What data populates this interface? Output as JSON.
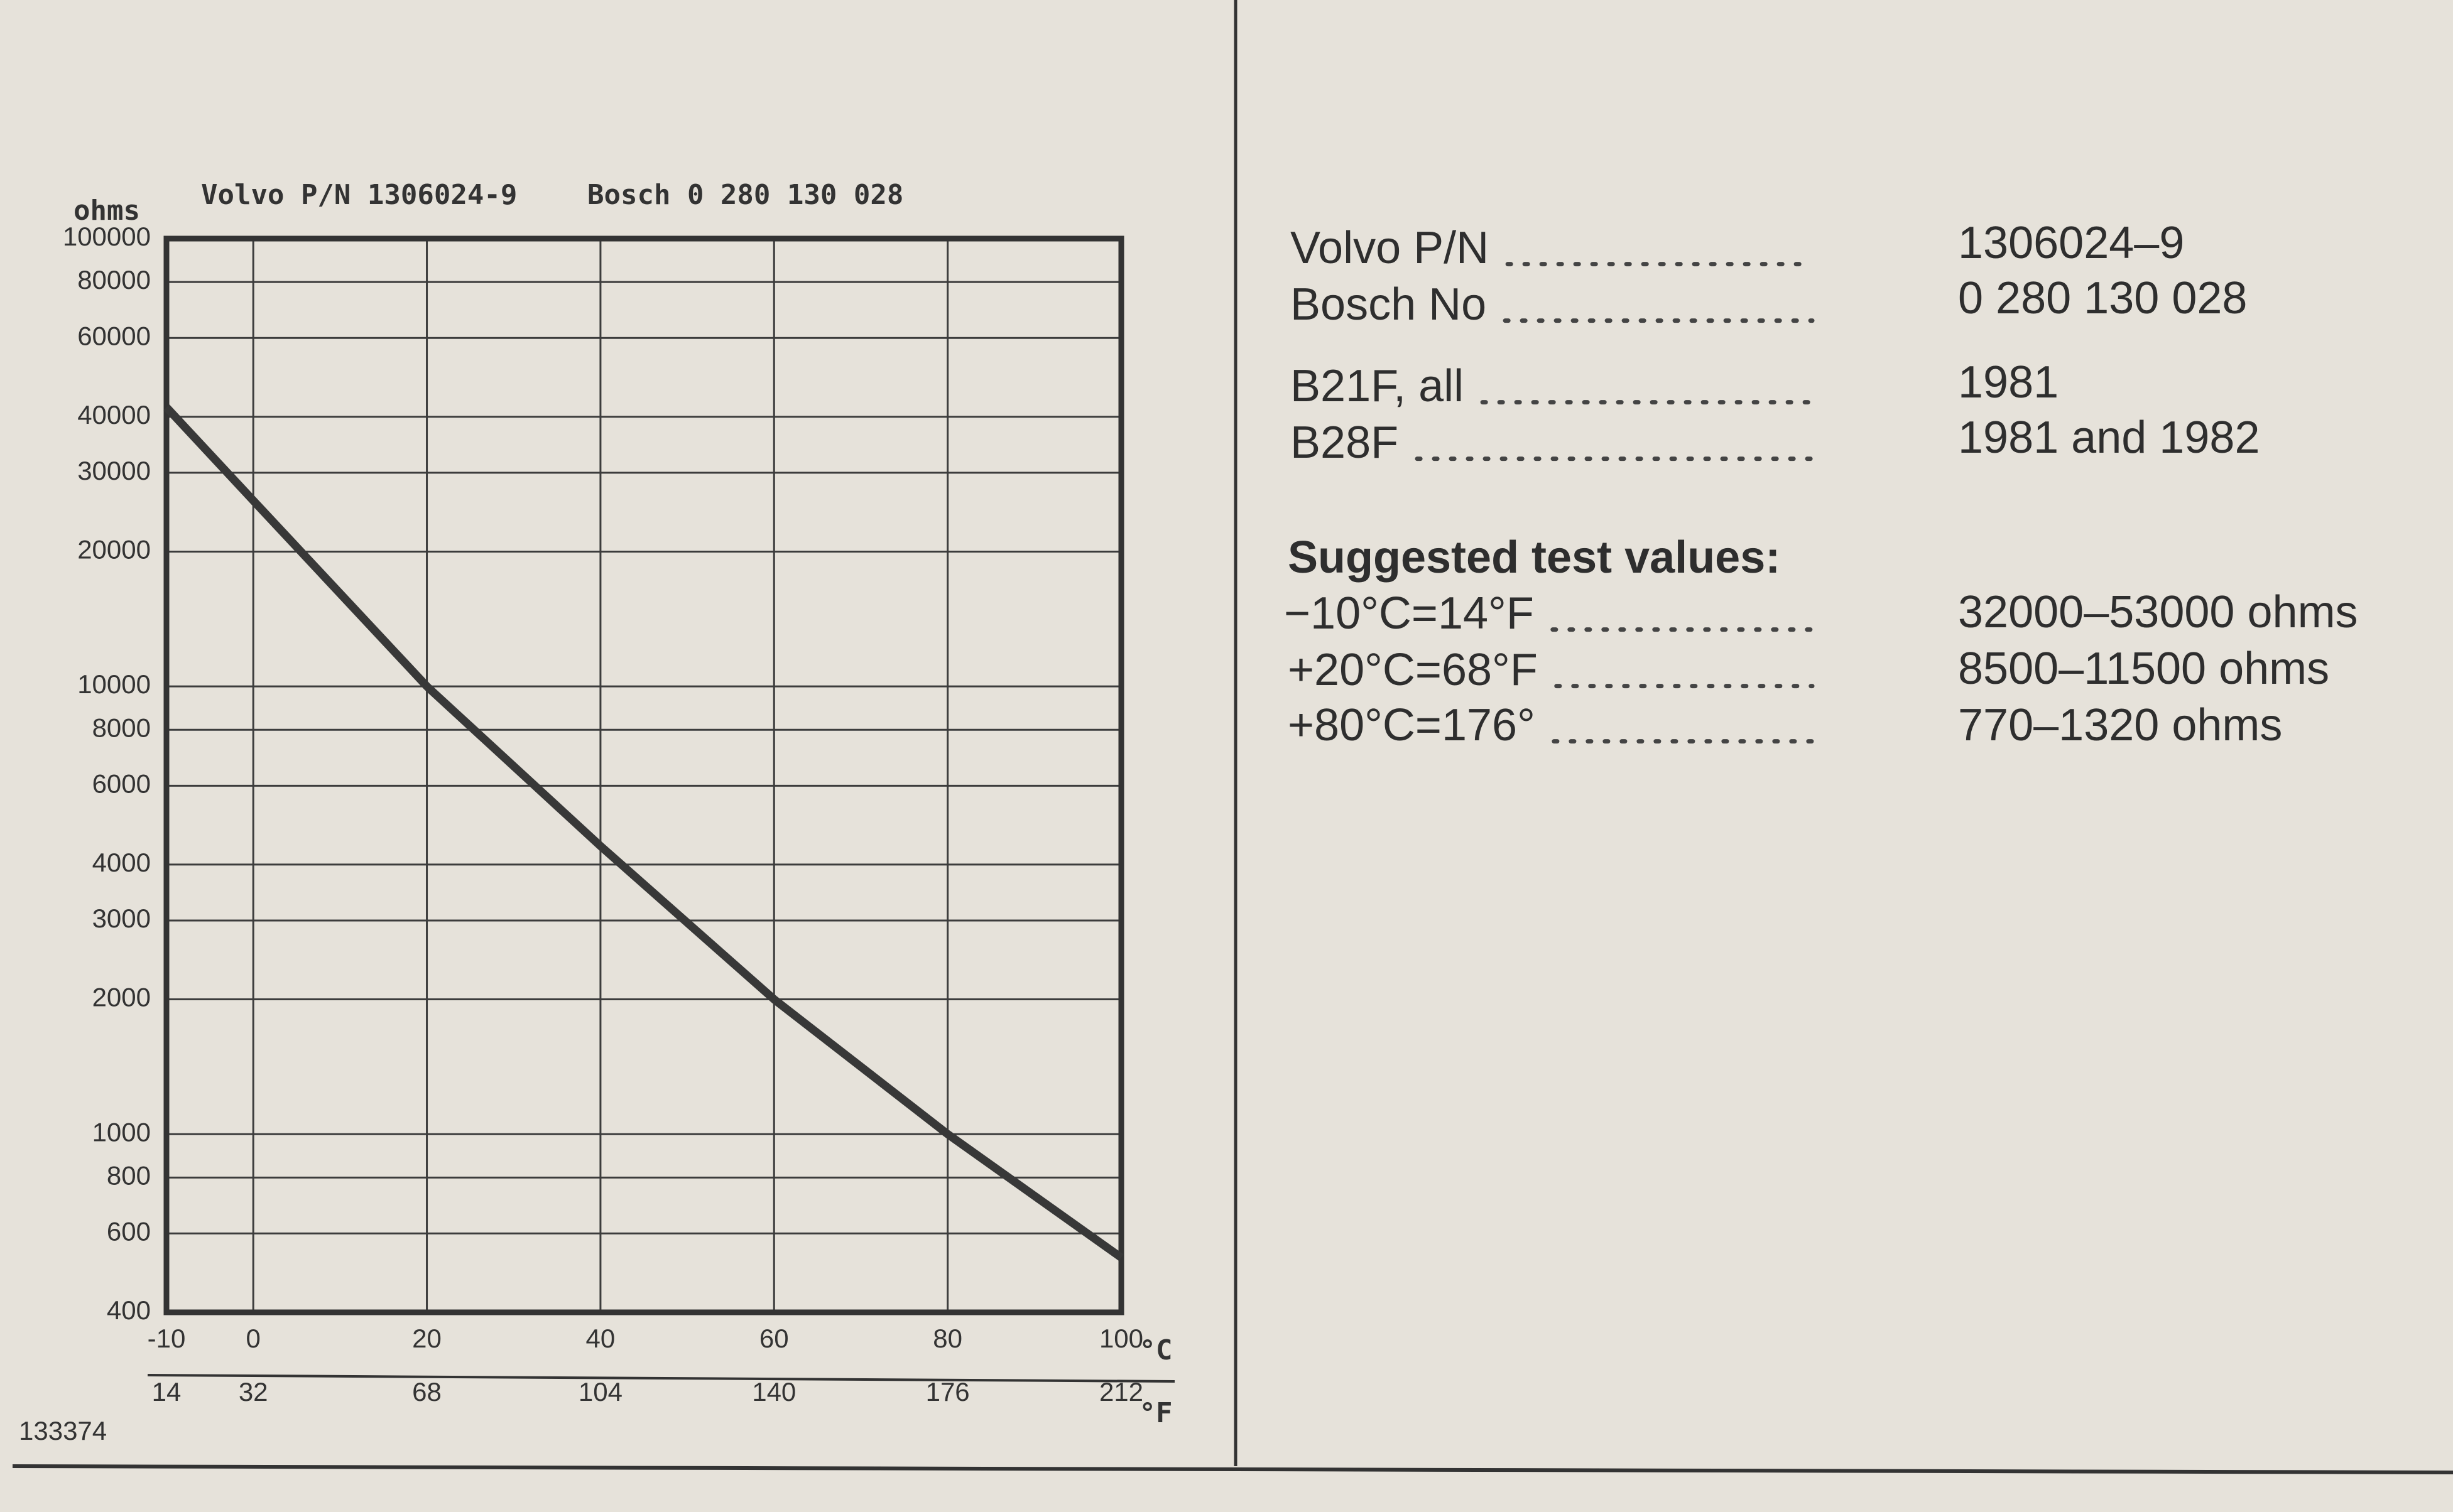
{
  "chart_data": {
    "type": "line",
    "part_label": "Volvo P/N 1306024-9",
    "bosch_label": "Bosch 0 280 130 028",
    "y_label": "ohms",
    "x_unit": "°C",
    "x2_unit": "°F",
    "figure_number": "133374",
    "x": [
      -10,
      0,
      20,
      40,
      60,
      80,
      100
    ],
    "values": [
      42000,
      26000,
      10000,
      4400,
      2000,
      1000,
      530
    ],
    "color": "#383838",
    "log_y": true,
    "grid": true,
    "xlim": [
      -10,
      100
    ],
    "xticks": [
      -10,
      0,
      20,
      40,
      60,
      80,
      100
    ],
    "x2lim": [
      14,
      212
    ],
    "x2ticks": [
      14,
      32,
      68,
      104,
      140,
      176,
      212
    ],
    "ylim": [
      400,
      100000
    ],
    "yticks": [
      400,
      600,
      800,
      1000,
      2000,
      3000,
      4000,
      6000,
      8000,
      10000,
      20000,
      30000,
      40000,
      60000,
      80000,
      100000
    ]
  },
  "specs": {
    "rows": [
      {
        "label": "Volvo P/N",
        "value": "1306024–9"
      },
      {
        "label": "Bosch No",
        "value": "0 280 130 028"
      },
      {
        "label": "B21F, all",
        "value": "1981"
      },
      {
        "label": "B28F",
        "value": "1981 and 1982"
      }
    ],
    "test_heading": "Suggested test values:",
    "tests": [
      {
        "label": "−10°C=14°F",
        "value": "32000–53000 ohms"
      },
      {
        "label": "+20°C=68°F",
        "value": "8500–11500 ohms"
      },
      {
        "label": "+80°C=176°",
        "value": "770–1320 ohms"
      }
    ]
  }
}
